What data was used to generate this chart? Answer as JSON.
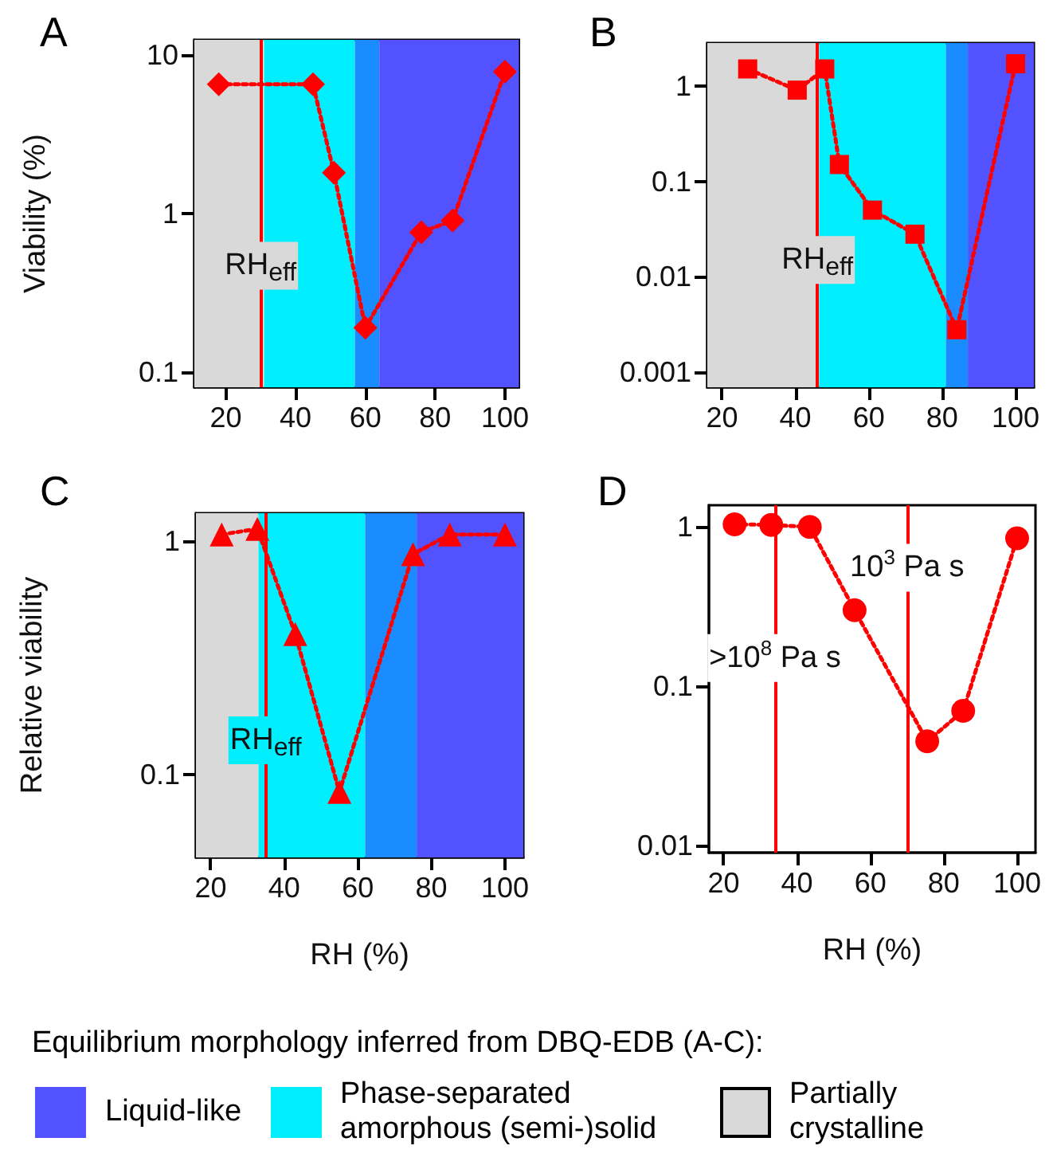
{
  "chart_data": [
    {
      "type": "line",
      "title": "A",
      "ylabel": "Viability (%)",
      "x": [
        18,
        45,
        51,
        60,
        76,
        85,
        100
      ],
      "values": [
        6.5,
        6.5,
        1.8,
        0.19,
        0.76,
        0.9,
        7.8
      ],
      "color": "#ff0000",
      "marker": "diamond",
      "line_style": "dotted",
      "log": true,
      "xlim": [
        11,
        104
      ],
      "xticks": [
        20,
        40,
        60,
        80,
        100
      ],
      "ylim": [
        0.08,
        12.4
      ],
      "yticks": [
        0.1,
        1,
        10
      ],
      "ref_lines": [
        {
          "axis": "x",
          "value": 30,
          "label": "RH$_{eff}$",
          "color": "#ff0000"
        }
      ],
      "bands": [
        {
          "axis": "x",
          "from": 11,
          "to": 31,
          "color": "#d9d9d9"
        },
        {
          "axis": "x",
          "from": 31,
          "to": 57,
          "color": "#00efff"
        },
        {
          "axis": "x",
          "from": 57,
          "to": 64,
          "color": "#1a8cff"
        },
        {
          "axis": "x",
          "from": 64,
          "to": 104,
          "color": "#5252ff"
        }
      ]
    },
    {
      "type": "line",
      "title": "B",
      "x": [
        27,
        40.5,
        48,
        52,
        61,
        72.6,
        84,
        100
      ],
      "values": [
        1.5,
        0.9,
        1.5,
        0.15,
        0.05,
        0.028,
        0.0028,
        1.7
      ],
      "color": "#ff0000",
      "marker": "square",
      "line_style": "dotted",
      "log": true,
      "xlim": [
        16,
        105
      ],
      "xticks": [
        20,
        40,
        60,
        80,
        100
      ],
      "ylim": [
        0.0007,
        2.8
      ],
      "yticks": [
        0.001,
        0.01,
        0.1,
        1
      ],
      "ref_lines": [
        {
          "axis": "x",
          "value": 46,
          "label": "RH$_{eff}$",
          "color": "#ff0000"
        }
      ],
      "bands": [
        {
          "axis": "x",
          "from": 16,
          "to": 46.5,
          "color": "#d9d9d9"
        },
        {
          "axis": "x",
          "from": 46.5,
          "to": 81,
          "color": "#00efff"
        },
        {
          "axis": "x",
          "from": 81,
          "to": 87,
          "color": "#1a8cff"
        },
        {
          "axis": "x",
          "from": 87,
          "to": 105,
          "color": "#5252ff"
        }
      ]
    },
    {
      "type": "line",
      "title": "C",
      "xlabel": "RH (%)",
      "ylabel": "Relative viability",
      "x": [
        23,
        32.7,
        43,
        55,
        75,
        85,
        100
      ],
      "values": [
        1.07,
        1.13,
        0.4,
        0.084,
        0.88,
        1.07,
        1.07
      ],
      "color": "#ff0000",
      "marker": "triangle",
      "line_style": "dotted",
      "log": true,
      "xlim": [
        16,
        105
      ],
      "xticks": [
        20,
        40,
        60,
        80,
        100
      ],
      "ylim": [
        0.044,
        1.32
      ],
      "yticks": [
        0.1,
        1
      ],
      "ref_lines": [
        {
          "axis": "x",
          "value": 35,
          "label": "RH$_{eff}$",
          "color": "#ff0000"
        }
      ],
      "bands": [
        {
          "axis": "x",
          "from": 16,
          "to": 33,
          "color": "#d9d9d9"
        },
        {
          "axis": "x",
          "from": 33,
          "to": 62,
          "color": "#00efff"
        },
        {
          "axis": "x",
          "from": 62,
          "to": 76,
          "color": "#1a8cff"
        },
        {
          "axis": "x",
          "from": 76,
          "to": 105,
          "color": "#5252ff"
        }
      ]
    },
    {
      "type": "line",
      "title": "D",
      "xlabel": "RH (%)",
      "x": [
        23,
        33,
        43.5,
        55.7,
        75.5,
        85.3,
        100
      ],
      "values": [
        1.04,
        1.03,
        1.0,
        0.3,
        0.045,
        0.07,
        0.85
      ],
      "color": "#ff0000",
      "marker": "circle",
      "line_style": "dotted",
      "log": true,
      "xlim": [
        16,
        105
      ],
      "xticks": [
        20,
        40,
        60,
        80,
        100
      ],
      "ylim": [
        0.009,
        1.37
      ],
      "yticks": [
        0.01,
        0.1,
        1
      ],
      "ref_lines": [
        {
          "axis": "x",
          "value": 34,
          "label": ">10$^{8}$ Pa s",
          "color": "#ff0000"
        },
        {
          "axis": "x",
          "value": 70,
          "label": "10$^{3}$ Pa s",
          "color": "#ff0000"
        }
      ]
    },
    {
      "type": "other",
      "title": "Equilibrium morphology inferred from DBQ-EDB (A-C):",
      "categories": [
        "Liquid-like",
        "Phase-separated amorphous (semi-)solid",
        "Partially crystalline"
      ],
      "colors": [
        "#5252ff",
        "#00efff",
        "#d9d9d9"
      ]
    }
  ]
}
